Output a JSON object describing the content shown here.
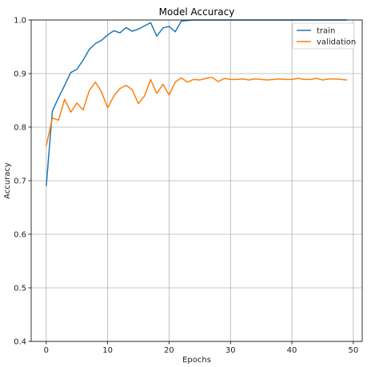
{
  "chart_data": {
    "type": "line",
    "title": "Model Accuracy",
    "xlabel": "Epochs",
    "ylabel": "Accuracy",
    "xlim": [
      -2.45,
      51.45
    ],
    "ylim": [
      0.4,
      1.0
    ],
    "xticks": [
      0,
      10,
      20,
      30,
      40,
      50
    ],
    "yticks": [
      0.4,
      0.5,
      0.6,
      0.7,
      0.8,
      0.9,
      1.0
    ],
    "grid": true,
    "legend_position": "top-right",
    "series": [
      {
        "name": "train",
        "color": "#1f77b4",
        "x": [
          0,
          1,
          2,
          3,
          4,
          5,
          6,
          7,
          8,
          9,
          10,
          11,
          12,
          13,
          14,
          15,
          16,
          17,
          18,
          19,
          20,
          21,
          22,
          23,
          24,
          25,
          26,
          27,
          28,
          29,
          30,
          31,
          32,
          33,
          34,
          35,
          36,
          37,
          38,
          39,
          40,
          41,
          42,
          43,
          44,
          45,
          46,
          47,
          48,
          49
        ],
        "values": [
          0.69,
          0.83,
          0.855,
          0.878,
          0.902,
          0.908,
          0.925,
          0.945,
          0.956,
          0.962,
          0.972,
          0.98,
          0.976,
          0.986,
          0.979,
          0.983,
          0.989,
          0.995,
          0.97,
          0.985,
          0.988,
          0.978,
          0.998,
          0.999,
          1.0,
          1.0,
          1.0,
          1.0,
          1.0,
          1.0,
          1.0,
          1.0,
          1.0,
          1.0,
          1.0,
          1.0,
          1.0,
          1.0,
          1.0,
          1.0,
          1.0,
          1.0,
          1.0,
          1.0,
          1.0,
          1.0,
          1.0,
          1.0,
          1.0,
          1.0
        ]
      },
      {
        "name": "validation",
        "color": "#ff7f0e",
        "x": [
          0,
          1,
          2,
          3,
          4,
          5,
          6,
          7,
          8,
          9,
          10,
          11,
          12,
          13,
          14,
          15,
          16,
          17,
          18,
          19,
          20,
          21,
          22,
          23,
          24,
          25,
          26,
          27,
          28,
          29,
          30,
          31,
          32,
          33,
          34,
          35,
          36,
          37,
          38,
          39,
          40,
          41,
          42,
          43,
          44,
          45,
          46,
          47,
          48,
          49
        ],
        "values": [
          0.765,
          0.817,
          0.813,
          0.852,
          0.828,
          0.845,
          0.832,
          0.868,
          0.884,
          0.866,
          0.836,
          0.858,
          0.872,
          0.878,
          0.87,
          0.844,
          0.858,
          0.889,
          0.863,
          0.88,
          0.86,
          0.884,
          0.892,
          0.884,
          0.889,
          0.888,
          0.891,
          0.893,
          0.885,
          0.891,
          0.889,
          0.889,
          0.89,
          0.888,
          0.89,
          0.889,
          0.888,
          0.889,
          0.89,
          0.889,
          0.889,
          0.891,
          0.889,
          0.889,
          0.891,
          0.888,
          0.89,
          0.89,
          0.889,
          0.888
        ]
      }
    ]
  },
  "colors": {
    "grid": "#b0b0b0",
    "axis": "#000000",
    "train": "#1f77b4",
    "validation": "#ff7f0e"
  }
}
